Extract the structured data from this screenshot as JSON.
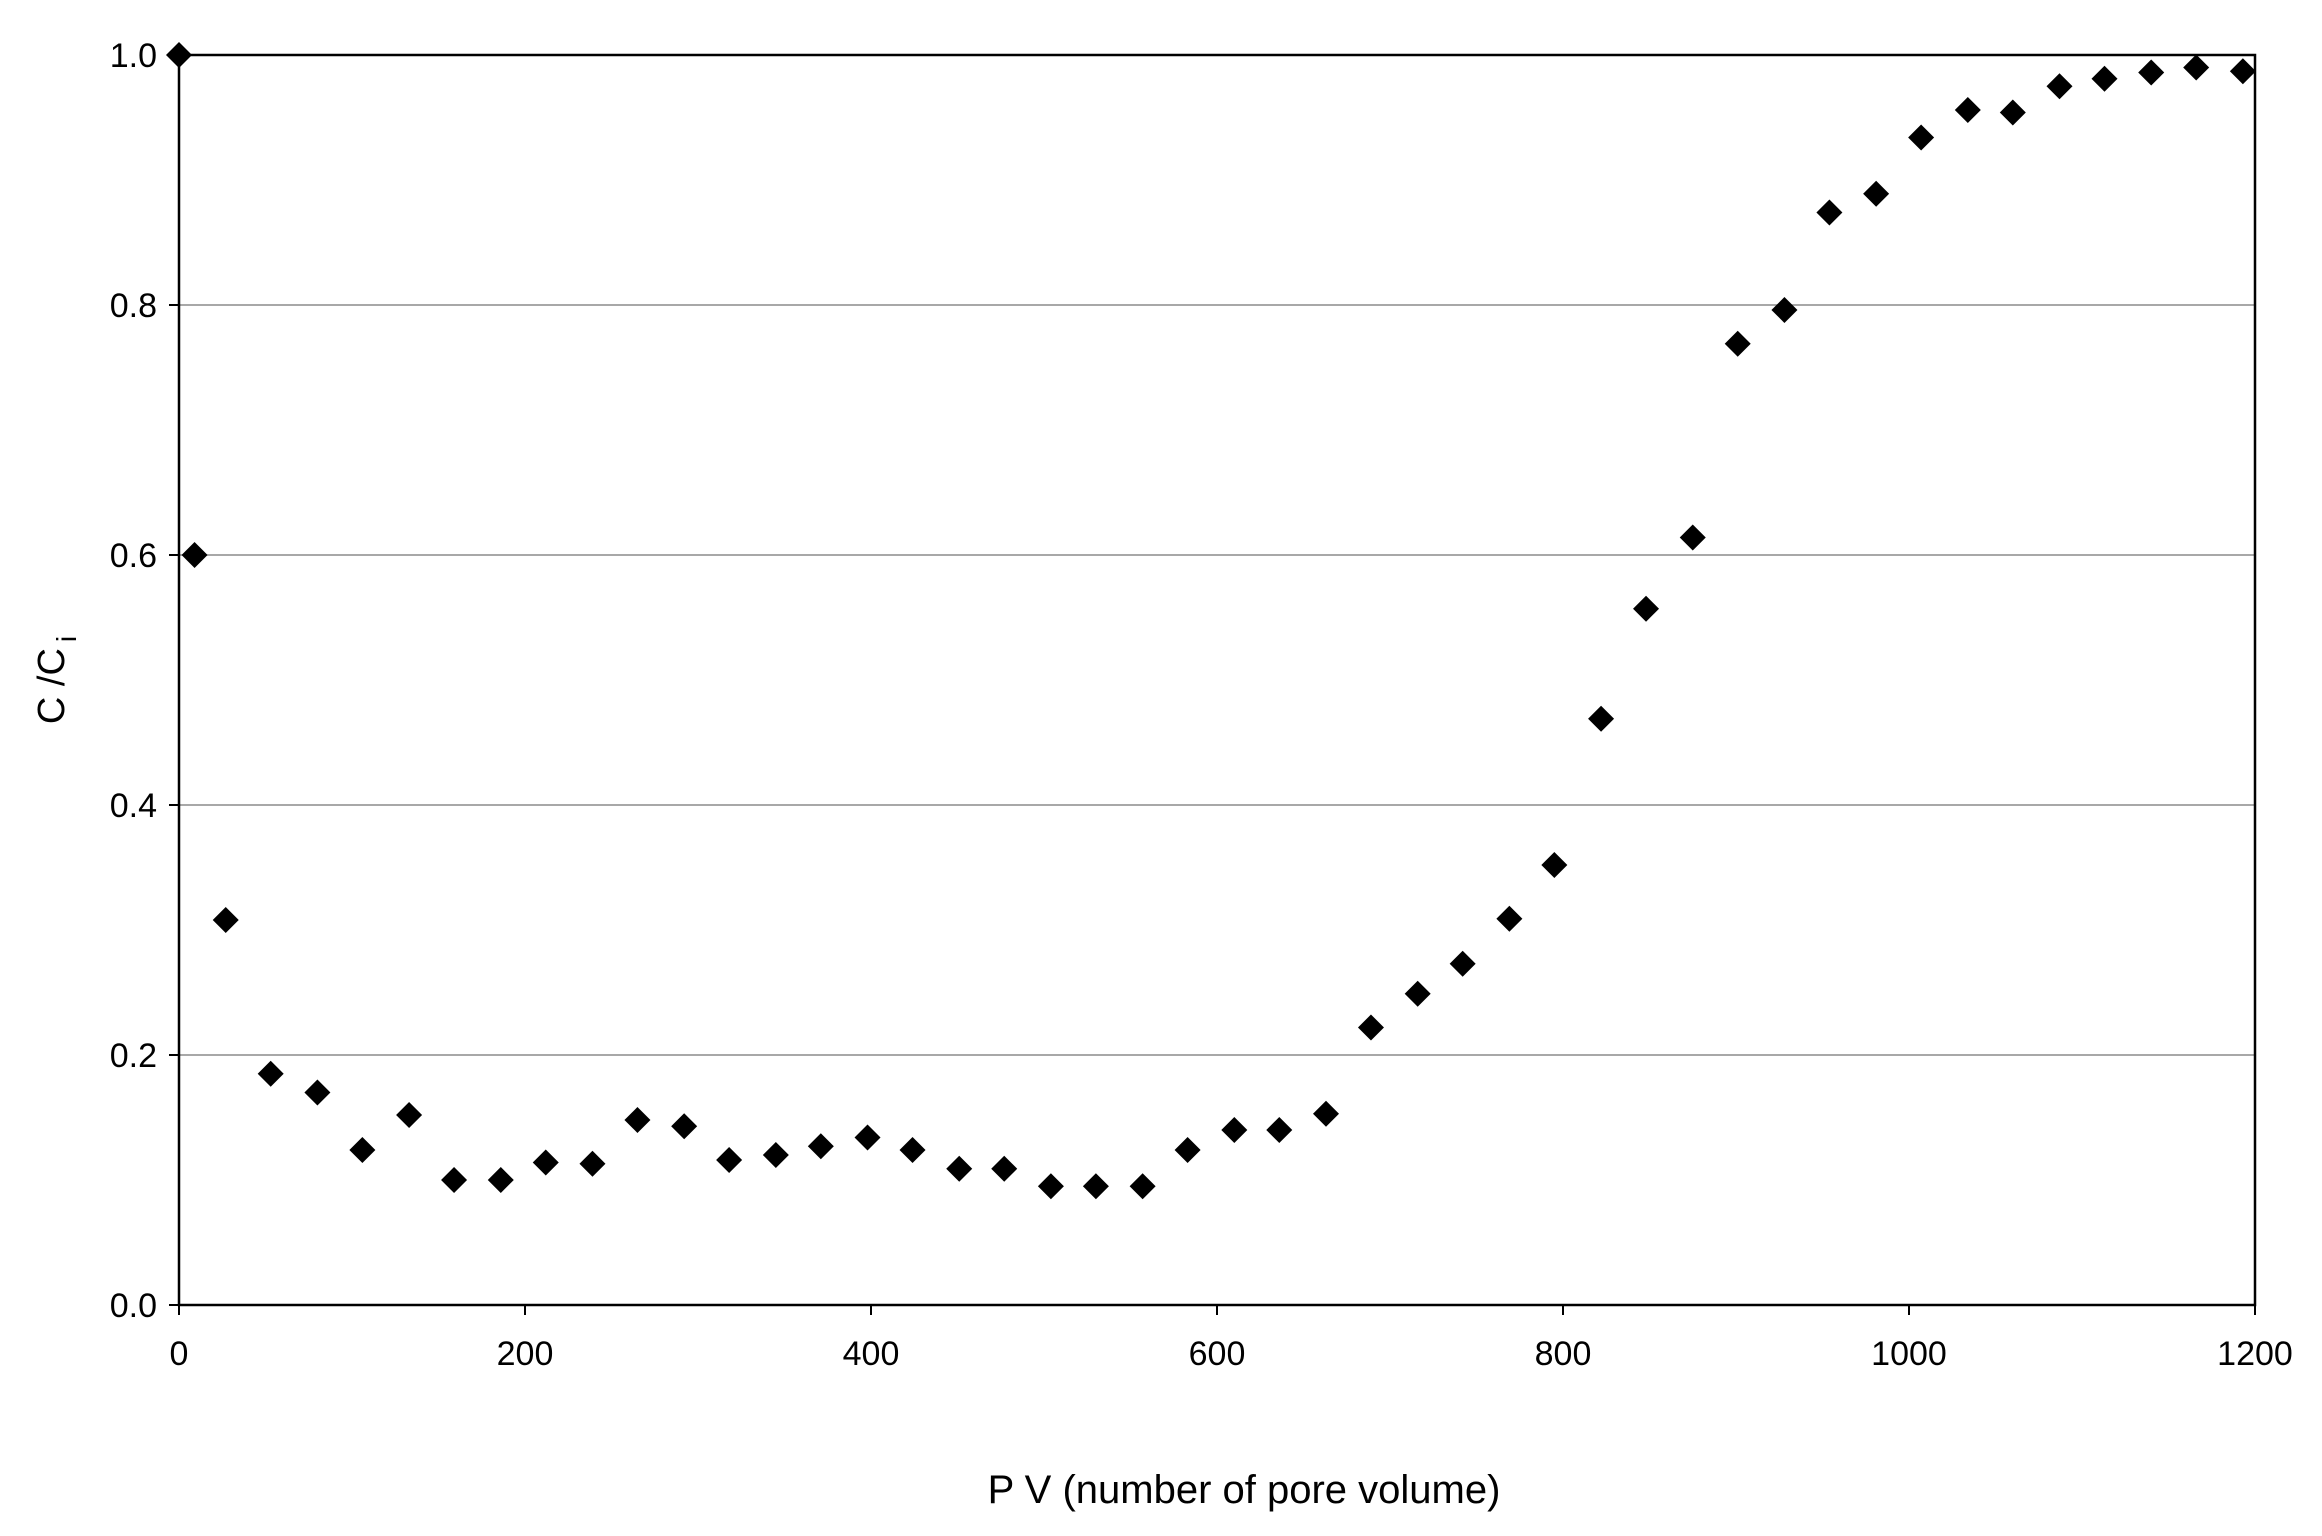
{
  "chart_data": {
    "type": "scatter",
    "title": "",
    "xlabel": "P V  (number of pore volume)",
    "ylabel": {
      "main": "C /C",
      "subscript": "i"
    },
    "xlim": [
      0,
      1200
    ],
    "ylim": [
      0,
      1.0
    ],
    "xticks": [
      0,
      200,
      400,
      600,
      800,
      1000,
      1200
    ],
    "yticks": [
      0.0,
      0.2,
      0.4,
      0.6,
      0.8,
      1.0
    ],
    "xtick_labels": [
      "0",
      "200",
      "400",
      "600",
      "800",
      "1000",
      "1200"
    ],
    "ytick_labels": [
      "0.0",
      "0.2",
      "0.4",
      "0.6",
      "0.8",
      "1.0"
    ],
    "grid": "horizontal",
    "legend": "none",
    "marker": "diamond",
    "marker_color": "#000000",
    "series": [
      {
        "x": [
          0,
          9,
          27,
          53,
          80,
          106,
          133,
          159,
          186,
          212,
          239,
          265,
          292,
          318,
          345,
          371,
          398,
          424,
          451,
          477,
          504,
          530,
          557,
          583,
          610,
          636,
          663,
          689,
          716,
          742,
          769,
          795,
          822,
          848,
          875,
          901,
          928,
          954,
          981,
          1007,
          1034,
          1060,
          1087,
          1113,
          1140,
          1166,
          1193
        ],
        "y": [
          1.0,
          0.6,
          0.308,
          0.185,
          0.17,
          0.124,
          0.152,
          0.1,
          0.1,
          0.114,
          0.113,
          0.148,
          0.143,
          0.116,
          0.12,
          0.127,
          0.134,
          0.124,
          0.109,
          0.109,
          0.095,
          0.095,
          0.095,
          0.124,
          0.14,
          0.14,
          0.153,
          0.222,
          0.249,
          0.273,
          0.309,
          0.352,
          0.469,
          0.557,
          0.614,
          0.769,
          0.796,
          0.874,
          0.889,
          0.934,
          0.956,
          0.954,
          0.975,
          0.981,
          0.986,
          0.99,
          0.987
        ]
      }
    ]
  }
}
